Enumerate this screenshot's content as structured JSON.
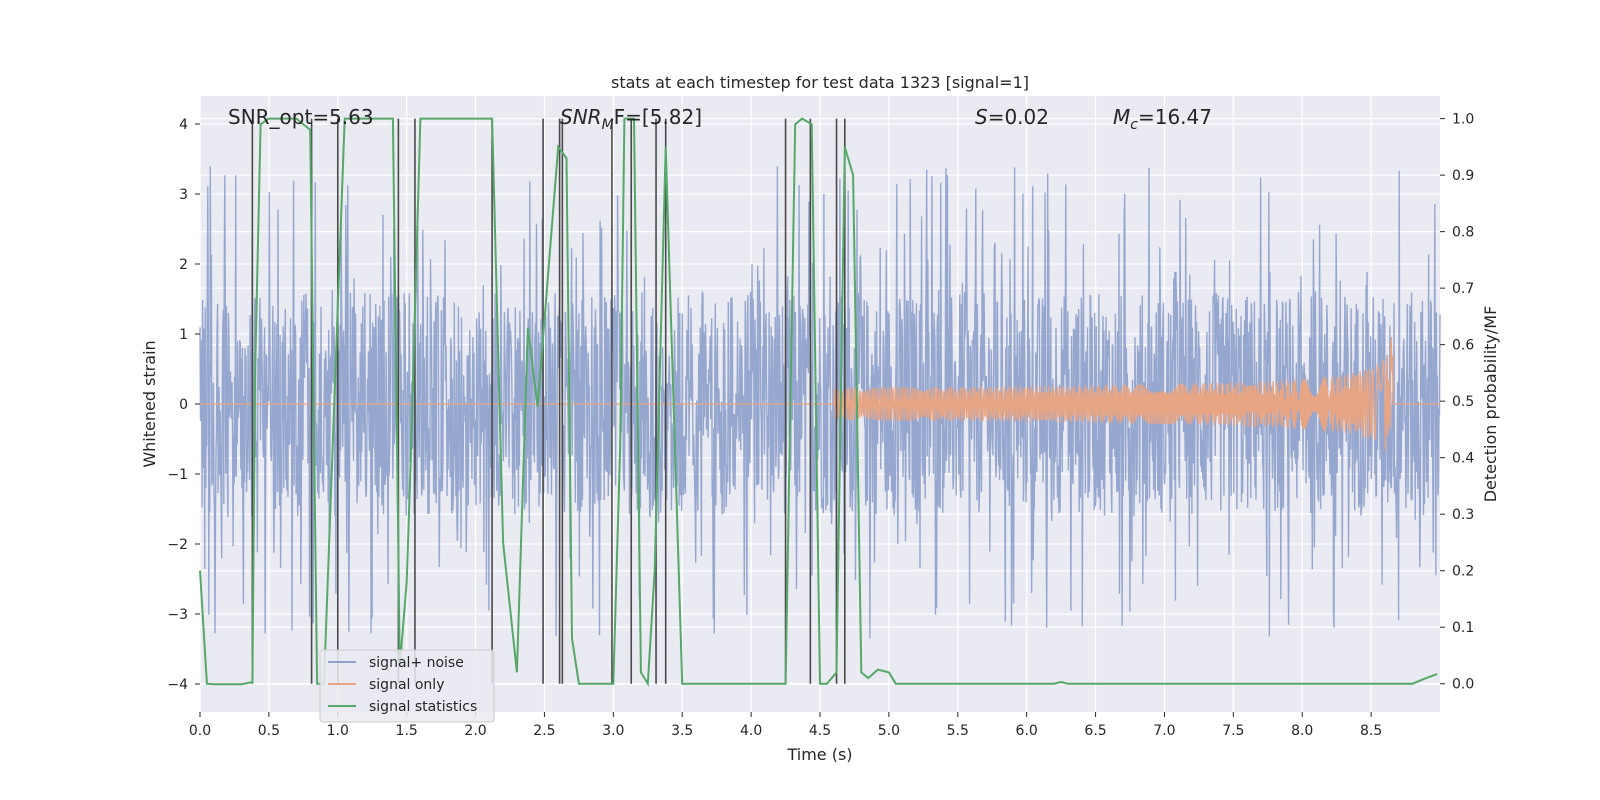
{
  "chart_data": {
    "type": "line",
    "title": "stats at each timestep for test data 1323 [signal=1]",
    "xlabel": "Time (s)",
    "ylabel": "Whitened strain",
    "ylabel_right": "Detection probability/MF",
    "xlim": [
      0.0,
      9.0
    ],
    "ylim": [
      -4.4,
      4.4
    ],
    "ylim_right": [
      -0.05,
      1.04
    ],
    "x_ticks": [
      0.0,
      0.5,
      1.0,
      1.5,
      2.0,
      2.5,
      3.0,
      3.5,
      4.0,
      4.5,
      5.0,
      5.5,
      6.0,
      6.5,
      7.0,
      7.5,
      8.0,
      8.5
    ],
    "x_tick_labels": [
      "0.0",
      "0.5",
      "1.0",
      "1.5",
      "2.0",
      "2.5",
      "3.0",
      "3.5",
      "4.0",
      "4.5",
      "5.0",
      "5.5",
      "6.0",
      "6.5",
      "7.0",
      "7.5",
      "8.0",
      "8.5"
    ],
    "y_ticks": [
      -4,
      -3,
      -2,
      -1,
      0,
      1,
      2,
      3,
      4
    ],
    "y_tick_labels": [
      "−4",
      "−3",
      "−2",
      "−1",
      "0",
      "1",
      "2",
      "3",
      "4"
    ],
    "y_ticks_right": [
      0.0,
      0.1,
      0.2,
      0.3,
      0.4,
      0.5,
      0.6,
      0.7,
      0.8,
      0.9,
      1.0
    ],
    "y_tick_labels_right": [
      "0.0",
      "0.1",
      "0.2",
      "0.3",
      "0.4",
      "0.5",
      "0.6",
      "0.7",
      "0.8",
      "0.9",
      "1.0"
    ],
    "grid": true,
    "legend_position": "lower-left",
    "annotations": {
      "snr_opt": "SNR_opt=5.63",
      "snr_mf_base": "SNR",
      "snr_mf_sub": "M",
      "snr_mf_tail": "F=[5.82]",
      "s_var": "S",
      "s_val": "=0.02",
      "mc_var": "M",
      "mc_sub": "c",
      "mc_val": "=16.47"
    },
    "series": [
      {
        "name": "signal+ noise",
        "color": "#8da0cb",
        "noise_band": 1.6,
        "peak_max": 3.6,
        "t_end": 9.0
      },
      {
        "name": "signal only",
        "color": "#e8a584",
        "chirp_start": 4.6,
        "chirp_end": 8.66,
        "peak_amplitude": 1.3
      },
      {
        "name": "signal statistics",
        "color": "#55a868",
        "x": [
          0.0,
          0.05,
          0.1,
          0.3,
          0.38,
          0.4,
          0.44,
          0.5,
          0.55,
          0.7,
          0.8,
          0.85,
          0.9,
          1.05,
          1.1,
          1.4,
          1.45,
          1.5,
          1.53,
          1.6,
          1.65,
          2.12,
          2.2,
          2.3,
          2.38,
          2.45,
          2.6,
          2.66,
          2.7,
          2.75,
          3.0,
          3.05,
          3.08,
          3.15,
          3.2,
          3.25,
          3.3,
          3.38,
          3.5,
          4.1,
          4.25,
          4.32,
          4.37,
          4.44,
          4.5,
          4.55,
          4.62,
          4.68,
          4.74,
          4.8,
          4.85,
          4.92,
          5.0,
          5.05,
          5.1,
          6.2,
          6.25,
          6.3,
          8.8,
          8.9,
          8.98
        ],
        "y": [
          0.2,
          0.0,
          -0.001,
          -0.001,
          0.003,
          0.55,
          0.99,
          1.0,
          1.0,
          1.0,
          0.98,
          0.0,
          0.0,
          1.0,
          1.0,
          1.0,
          0.03,
          0.18,
          0.4,
          1.0,
          1.0,
          1.0,
          0.25,
          0.02,
          0.63,
          0.49,
          0.95,
          0.93,
          0.08,
          0.0,
          0.0,
          0.42,
          1.0,
          1.0,
          0.02,
          0.0,
          0.2,
          0.95,
          0.0,
          0.0,
          0.0,
          0.99,
          1.0,
          0.99,
          0.0,
          0.0,
          0.02,
          0.95,
          0.9,
          0.02,
          0.01,
          0.025,
          0.02,
          0.0,
          0.0,
          0.0,
          0.003,
          0.0,
          0.0,
          0.01,
          0.017
        ]
      }
    ],
    "vertical_markers": [
      0.38,
      0.81,
      1.0,
      1.44,
      1.56,
      2.12,
      2.49,
      2.61,
      2.63,
      2.99,
      3.13,
      3.31,
      3.38,
      4.25,
      4.43,
      4.62,
      4.68
    ],
    "marker_color": "#4a4a4a"
  }
}
